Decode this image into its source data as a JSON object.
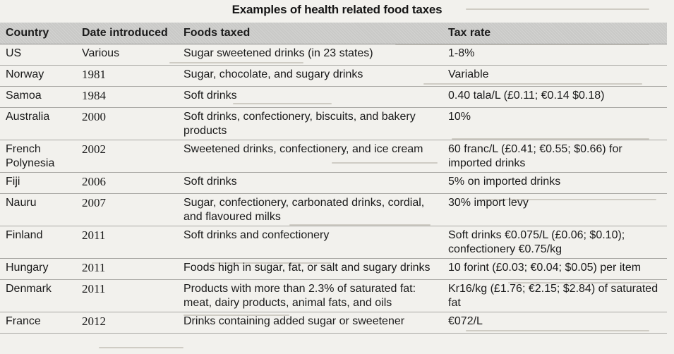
{
  "table": {
    "title": "Examples of health related food taxes",
    "headers": [
      "Country",
      "Date introduced",
      "Foods taxed",
      "Tax rate"
    ],
    "rows": [
      [
        "US",
        "Various",
        "Sugar sweetened drinks (in 23 states)",
        "1-8%"
      ],
      [
        "Norway",
        "1981",
        "Sugar, chocolate, and sugary drinks",
        "Variable"
      ],
      [
        "Samoa",
        "1984",
        "Soft drinks",
        "0.40 tala/L (£0.11; €0.14 $0.18)"
      ],
      [
        "Australia",
        "2000",
        "Soft drinks, confectionery, biscuits, and bakery products",
        "10%"
      ],
      [
        "French Polynesia",
        "2002",
        "Sweetened drinks, confectionery, and ice cream",
        "60 franc/L (£0.41; €0.55; $0.66) for imported drinks"
      ],
      [
        "Fiji",
        "2006",
        "Soft drinks",
        "5% on imported drinks"
      ],
      [
        "Nauru",
        "2007",
        "Sugar, confectionery, carbonated drinks, cordial, and flavoured milks",
        "30% import levy"
      ],
      [
        "Finland",
        "2011",
        "Soft drinks and confectionery",
        "Soft drinks €0.075/L (£0.06; $0.10); confectionery €0.75/kg"
      ],
      [
        "Hungary",
        "2011",
        "Foods high in sugar, fat, or salt and sugary drinks",
        "10 forint (£0.03; €0.04; $0.05) per item"
      ],
      [
        "Denmark",
        "2011",
        "Products with more than 2.3% of saturated fat: meat, dairy products, animal fats, and oils",
        "Kr16/kg (£1.76; €2.15; $2.84) of saturated fat"
      ],
      [
        "France",
        "2012",
        "Drinks containing added sugar or sweetener",
        "€072/L"
      ]
    ]
  },
  "colors": {
    "header_background": "#c9c9c7",
    "paper": "#f2f1ed",
    "row_rule": "#a9a8a4"
  }
}
